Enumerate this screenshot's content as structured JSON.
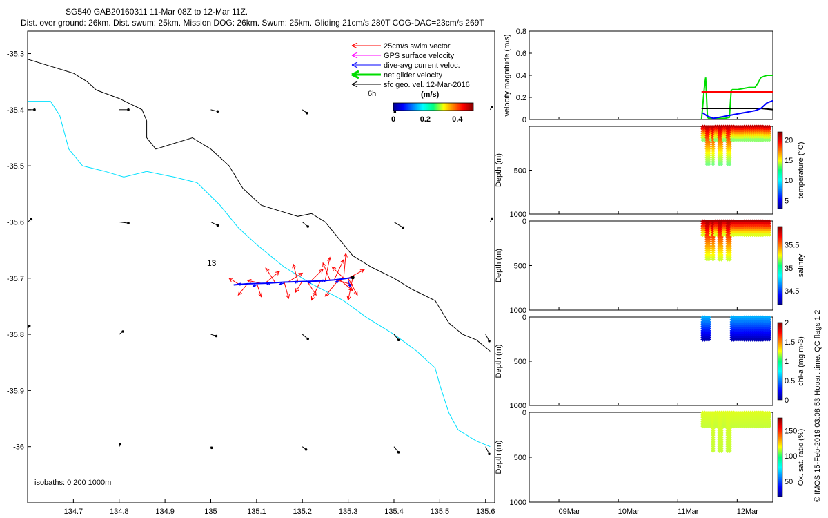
{
  "header": {
    "line1": "SG540 GAB20160311 11-Mar 08Z to 12-Mar 11Z.",
    "line2": "Dist. over ground: 26km. Dist. swum: 25km. Mission DOG: 26km. Swum: 25km. Gliding 21cm/s 280T COG-DAC=23cm/s 269T"
  },
  "colors": {
    "swim": "#ff0000",
    "gps": "#ff00ff",
    "dac": "#0000ff",
    "net": "#00dd00",
    "geo": "#000000",
    "isobath200": "#00e0ff",
    "isobath1000": "#000000"
  },
  "map": {
    "legend": [
      "25cm/s swim vector",
      "GPS surface velocity",
      "dive-avg current veloc.",
      "net glider velocity",
      "sfc geo. vel. 12-Mar-2016"
    ],
    "scale_label": "6h",
    "colorbar": {
      "unit": "(m/s)",
      "ticks": [
        0,
        0.2,
        0.4
      ],
      "range": [
        0,
        0.5
      ]
    },
    "xlim": [
      134.6,
      135.62
    ],
    "ylim": [
      -36.1,
      -35.26
    ],
    "x_ticks": [
      134.7,
      134.8,
      134.9,
      135,
      135.1,
      135.2,
      135.3,
      135.4,
      135.5,
      135.6
    ],
    "y_ticks": [
      -35.3,
      -35.4,
      -35.5,
      -35.6,
      -35.7,
      -35.8,
      -35.9,
      -36
    ],
    "isobath_note": "isobaths: 0   200  1000m",
    "dive_label": "13",
    "isobath_1000": [
      [
        134.6,
        -35.31
      ],
      [
        134.64,
        -35.32
      ],
      [
        134.7,
        -35.335
      ],
      [
        134.73,
        -35.35
      ],
      [
        134.75,
        -35.365
      ],
      [
        134.8,
        -35.38
      ],
      [
        134.85,
        -35.4
      ],
      [
        134.86,
        -35.42
      ],
      [
        134.86,
        -35.45
      ],
      [
        134.88,
        -35.47
      ],
      [
        134.92,
        -35.46
      ],
      [
        134.96,
        -35.45
      ],
      [
        135.0,
        -35.47
      ],
      [
        135.04,
        -35.5
      ],
      [
        135.07,
        -35.54
      ],
      [
        135.11,
        -35.57
      ],
      [
        135.15,
        -35.58
      ],
      [
        135.19,
        -35.59
      ],
      [
        135.22,
        -35.585
      ],
      [
        135.25,
        -35.6
      ],
      [
        135.28,
        -35.63
      ],
      [
        135.31,
        -35.66
      ],
      [
        135.35,
        -35.68
      ],
      [
        135.4,
        -35.7
      ],
      [
        135.44,
        -35.72
      ],
      [
        135.49,
        -35.74
      ],
      [
        135.52,
        -35.78
      ],
      [
        135.55,
        -35.8
      ],
      [
        135.58,
        -35.81
      ],
      [
        135.61,
        -35.83
      ]
    ],
    "isobath_200": [
      [
        134.6,
        -35.385
      ],
      [
        134.65,
        -35.385
      ],
      [
        134.67,
        -35.41
      ],
      [
        134.69,
        -35.47
      ],
      [
        134.72,
        -35.5
      ],
      [
        134.77,
        -35.51
      ],
      [
        134.81,
        -35.52
      ],
      [
        134.86,
        -35.51
      ],
      [
        134.92,
        -35.52
      ],
      [
        134.97,
        -35.53
      ],
      [
        135.02,
        -35.57
      ],
      [
        135.06,
        -35.61
      ],
      [
        135.1,
        -35.64
      ],
      [
        135.16,
        -35.68
      ],
      [
        135.22,
        -35.71
      ],
      [
        135.29,
        -35.74
      ],
      [
        135.34,
        -35.77
      ],
      [
        135.4,
        -35.8
      ],
      [
        135.45,
        -35.83
      ],
      [
        135.49,
        -35.86
      ],
      [
        135.5,
        -35.89
      ],
      [
        135.52,
        -35.94
      ],
      [
        135.54,
        -35.97
      ],
      [
        135.58,
        -35.99
      ],
      [
        135.61,
        -36.0
      ]
    ],
    "geo_vectors": [
      [
        134.6,
        -35.4,
        0.015,
        0
      ],
      [
        134.8,
        -35.4,
        0.02,
        0
      ],
      [
        135.0,
        -35.4,
        0.015,
        -0.003
      ],
      [
        135.2,
        -35.4,
        0.01,
        -0.006
      ],
      [
        135.4,
        -35.4,
        0.002,
        -0.004
      ],
      [
        135.61,
        -35.4,
        0.004,
        0.005
      ],
      [
        134.6,
        -35.6,
        0.008,
        0.005
      ],
      [
        134.8,
        -35.6,
        0.02,
        -0.002
      ],
      [
        135.0,
        -35.6,
        0.015,
        -0.006
      ],
      [
        135.2,
        -35.6,
        0.012,
        -0.008
      ],
      [
        135.4,
        -35.6,
        0.02,
        -0.01
      ],
      [
        135.61,
        -35.6,
        0.004,
        0.006
      ],
      [
        134.6,
        -35.79,
        0.004,
        0.005
      ],
      [
        134.8,
        -35.8,
        0.008,
        0.005
      ],
      [
        135.0,
        -35.8,
        0.012,
        -0.003
      ],
      [
        135.2,
        -35.8,
        0.012,
        -0.008
      ],
      [
        135.4,
        -35.8,
        0.01,
        -0.01
      ],
      [
        135.6,
        -35.8,
        0.008,
        -0.012
      ],
      [
        134.8,
        -36.0,
        0.002,
        0.004
      ],
      [
        135.0,
        -36.0,
        0.002,
        -0.002
      ],
      [
        135.2,
        -36.0,
        0.008,
        -0.005
      ],
      [
        135.4,
        -36.0,
        0.01,
        -0.01
      ],
      [
        135.6,
        -36.0,
        0.008,
        -0.013
      ]
    ],
    "track": [
      [
        135.05,
        -35.712
      ],
      [
        135.08,
        -35.71
      ],
      [
        135.12,
        -35.709
      ],
      [
        135.16,
        -35.707
      ],
      [
        135.2,
        -35.706
      ],
      [
        135.24,
        -35.705
      ],
      [
        135.27,
        -35.703
      ],
      [
        135.3,
        -35.7
      ],
      [
        135.31,
        -35.699
      ]
    ],
    "swim_vectors": [
      [
        135.06,
        -35.71,
        -0.02,
        0.01
      ],
      [
        135.08,
        -35.71,
        -0.02,
        -0.02
      ],
      [
        135.1,
        -35.708,
        0.01,
        -0.025
      ],
      [
        135.12,
        -35.708,
        0.03,
        0.02
      ],
      [
        135.14,
        -35.707,
        -0.02,
        0.025
      ],
      [
        135.16,
        -35.706,
        0.01,
        -0.03
      ],
      [
        135.17,
        -35.706,
        0.03,
        0.015
      ],
      [
        135.19,
        -35.705,
        -0.01,
        0.03
      ],
      [
        135.21,
        -35.705,
        0.02,
        -0.025
      ],
      [
        135.22,
        -35.704,
        0.025,
        0.02
      ],
      [
        135.24,
        -35.704,
        -0.02,
        -0.035
      ],
      [
        135.25,
        -35.703,
        0.01,
        0.04
      ],
      [
        135.26,
        -35.703,
        -0.015,
        0.03
      ],
      [
        135.27,
        -35.702,
        0.02,
        0.035
      ],
      [
        135.28,
        -35.702,
        0.03,
        -0.02
      ],
      [
        135.28,
        -35.702,
        -0.03,
        -0.03
      ],
      [
        135.29,
        -35.701,
        0.005,
        0.045
      ],
      [
        135.29,
        -35.7,
        -0.025,
        0.02
      ],
      [
        135.3,
        -35.7,
        0.02,
        -0.03
      ],
      [
        135.3,
        -35.7,
        0.035,
        0.015
      ],
      [
        135.31,
        -35.699,
        -0.01,
        -0.04
      ],
      [
        135.11,
        -35.709,
        -0.03,
        0.005
      ],
      [
        135.2,
        -35.705,
        -0.015,
        -0.02
      ],
      [
        135.27,
        -35.702,
        0.04,
        -0.01
      ]
    ],
    "dac_vectors": [
      [
        135.07,
        -35.712,
        -0.01,
        0.002
      ],
      [
        135.1,
        -35.712,
        -0.008,
        -0.003
      ],
      [
        135.13,
        -35.711,
        -0.009,
        0.002
      ],
      [
        135.16,
        -35.709,
        -0.01,
        -0.002
      ],
      [
        135.19,
        -35.708,
        -0.008,
        0.002
      ],
      [
        135.22,
        -35.707,
        -0.007,
        -0.001
      ],
      [
        135.25,
        -35.706,
        -0.01,
        0.002
      ],
      [
        135.28,
        -35.705,
        -0.008,
        -0.002
      ],
      [
        135.3,
        -35.703,
        0.004,
        -0.012
      ]
    ]
  },
  "chart_data": [
    {
      "type": "line",
      "ylabel": "velocity magnitude (m/s)",
      "ylim": [
        0,
        0.8
      ],
      "y_ticks": [
        0,
        0.2,
        0.4,
        0.6,
        0.8
      ],
      "xlim": [
        8.5,
        12.6
      ],
      "series": [
        {
          "color": "#00dd00",
          "x": [
            11.4,
            11.45,
            11.47,
            11.5,
            11.52,
            11.6,
            11.7,
            11.8,
            11.87,
            11.9,
            11.92,
            12.0,
            12.1,
            12.2,
            12.3,
            12.35,
            12.4,
            12.5,
            12.6
          ],
          "y": [
            0.0,
            0.3,
            0.38,
            0.02,
            0.01,
            0.01,
            0.01,
            0.01,
            0.02,
            0.26,
            0.27,
            0.27,
            0.28,
            0.29,
            0.29,
            0.33,
            0.38,
            0.4,
            0.4
          ]
        },
        {
          "color": "#ff0000",
          "x": [
            11.4,
            12.6
          ],
          "y": [
            0.25,
            0.25
          ]
        },
        {
          "color": "#000000",
          "x": [
            11.4,
            11.6,
            11.8,
            12.0,
            12.2,
            12.4,
            12.6
          ],
          "y": [
            0.1,
            0.1,
            0.1,
            0.1,
            0.1,
            0.1,
            0.09
          ]
        },
        {
          "color": "#0000ff",
          "x": [
            11.42,
            11.5,
            11.6,
            11.7,
            11.8,
            11.9,
            12.0,
            12.1,
            12.2,
            12.3,
            12.4,
            12.5,
            12.6
          ],
          "y": [
            0.06,
            0.03,
            0.01,
            0.02,
            0.03,
            0.04,
            0.05,
            0.06,
            0.07,
            0.08,
            0.1,
            0.15,
            0.17
          ]
        }
      ]
    },
    {
      "type": "scatter",
      "ylabel": "Depth (m)",
      "ylim": [
        0,
        1000
      ],
      "y_ticks": [
        500,
        1000
      ],
      "clabel": "temperature (°C)",
      "clim": [
        3,
        22
      ],
      "c_ticks": [
        5,
        10,
        15,
        20
      ],
      "gaps": [],
      "deep_x": [
        11.5,
        11.6,
        11.72,
        11.85
      ],
      "shallow_c": 21,
      "deep_c": 12
    },
    {
      "type": "scatter",
      "ylabel": "Depth (m)",
      "ylim": [
        0,
        1000
      ],
      "y_ticks": [
        0,
        500,
        1000
      ],
      "clabel": "salinity",
      "clim": [
        34.2,
        35.9
      ],
      "c_ticks": [
        34.5,
        35,
        35.5
      ],
      "gaps": [],
      "deep_x": [
        11.5,
        11.6,
        11.72,
        11.85
      ],
      "shallow_c": 35.85,
      "deep_c": 35.15
    },
    {
      "type": "scatter",
      "ylabel": "Depth (m)",
      "ylim": [
        0,
        1000
      ],
      "y_ticks": [
        0,
        500,
        1000
      ],
      "clabel": "chl-a (mg m-3)",
      "clim": [
        0,
        2
      ],
      "c_ticks": [
        0,
        0.5,
        1,
        1.5,
        2
      ],
      "gaps": [
        [
          11.55,
          11.9
        ]
      ],
      "deep_x": [],
      "shallow_c": 0.6,
      "deep_c": 0.1
    },
    {
      "type": "scatter",
      "ylabel": "Depth (m)",
      "ylim": [
        0,
        1000
      ],
      "y_ticks": [
        0,
        500,
        1000
      ],
      "clabel": "Ox. sat. ratio (%)",
      "clim": [
        20,
        175
      ],
      "c_ticks": [
        50,
        100,
        150
      ],
      "gaps": [],
      "deep_x": [
        11.6,
        11.72,
        11.85
      ],
      "shallow_c": 112,
      "deep_c": 108
    }
  ],
  "time_axis": {
    "labels": [
      "09Mar",
      "10Mar",
      "11Mar",
      "12Mar"
    ],
    "ticks": [
      9,
      10,
      11,
      12
    ],
    "midday": [
      9,
      10,
      11,
      12
    ]
  },
  "footer_side": "© IMOS 15-Feb-2019 03:08:53 Hobart time. QC flags 1  2"
}
